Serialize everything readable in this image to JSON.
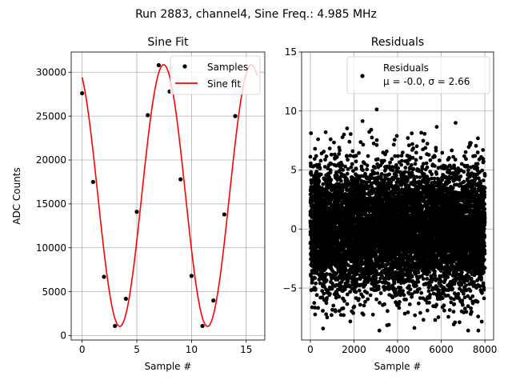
{
  "suptitle": "Run 2883, channel4, Sine Freq.: 4.985 MHz",
  "chart_data": [
    {
      "type": "scatter",
      "title": "Sine Fit",
      "xlabel": "Sample #",
      "ylabel": "ADC Counts",
      "xlim": [
        -1,
        16.7
      ],
      "ylim": [
        -500,
        32300
      ],
      "xticks": [
        0,
        5,
        10,
        15
      ],
      "yticks": [
        0,
        5000,
        10000,
        15000,
        20000,
        25000,
        30000
      ],
      "grid": true,
      "legend": {
        "placement": "top-right",
        "entries": [
          "Samples",
          "Sine fit"
        ]
      },
      "series": [
        {
          "name": "Samples",
          "marker": "point",
          "color": "#000000",
          "x": [
            0,
            1,
            2,
            3,
            4,
            5,
            6,
            7,
            8,
            9,
            10,
            11,
            12,
            13,
            14
          ],
          "y": [
            27600,
            17500,
            6700,
            1100,
            4200,
            14100,
            25100,
            30800,
            27800,
            17800,
            6800,
            1100,
            4000,
            13800,
            25000
          ]
        },
        {
          "name": "Sine fit",
          "marker": "line",
          "color": "#ff0000",
          "function": {
            "amplitude": 14900,
            "offset": 15950,
            "period": 8.02,
            "phase_deg": 115.5,
            "x_range": [
              0,
              16
            ]
          }
        }
      ]
    },
    {
      "type": "scatter",
      "title": "Residuals",
      "xlabel": "Sample #",
      "ylabel": "",
      "xlim": [
        -400,
        8400
      ],
      "ylim": [
        -9.4,
        15.0
      ],
      "xticks": [
        0,
        2000,
        4000,
        6000,
        8000
      ],
      "yticks": [
        -5,
        0,
        5,
        10,
        15
      ],
      "grid": true,
      "legend": {
        "placement": "top-right",
        "entries": [
          "Residuals"
        ],
        "stats_line": "μ = -0.0, σ = 2.66"
      },
      "series": [
        {
          "name": "Residuals",
          "marker": "point",
          "color": "#000000",
          "n_points": 8000,
          "mean": 0.0,
          "std": 2.66,
          "x_range": [
            0,
            8000
          ],
          "y_range": [
            -8.6,
            13.9
          ]
        }
      ]
    }
  ]
}
